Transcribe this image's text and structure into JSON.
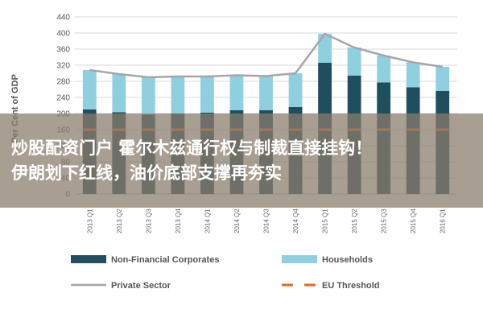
{
  "chart_data": {
    "type": "bar",
    "stacked": true,
    "ylabel": "Per Cent of GDP",
    "ylim": [
      0,
      440
    ],
    "yticks": [
      0,
      40,
      80,
      120,
      160,
      200,
      240,
      280,
      320,
      360,
      400,
      440
    ],
    "grid": true,
    "legend_position": "bottom",
    "categories": [
      "2013 Q1",
      "2013 Q2",
      "2013 Q3",
      "2013 Q4",
      "2014 Q1",
      "2014 Q2",
      "2014 Q3",
      "2014 Q4",
      "2015 Q1",
      "2015 Q2",
      "2015 Q3",
      "2015 Q4",
      "2016 Q1"
    ],
    "series": [
      {
        "name": "Non-Financial Corporates",
        "type": "bar",
        "color": "#1f4e5f",
        "values": [
          210,
          203,
          197,
          200,
          202,
          208,
          208,
          216,
          326,
          294,
          277,
          265,
          256
        ]
      },
      {
        "name": "Households",
        "type": "bar",
        "color": "#8fd0e0",
        "values": [
          98,
          95,
          93,
          92,
          90,
          87,
          85,
          84,
          72,
          70,
          67,
          62,
          60
        ]
      },
      {
        "name": "Private Sector",
        "type": "line",
        "color": "#a6a6a6",
        "values": [
          308,
          298,
          290,
          292,
          292,
          295,
          293,
          300,
          398,
          364,
          344,
          327,
          316
        ]
      },
      {
        "name": "EU Threshold",
        "type": "line",
        "style": "dashed",
        "color": "#e06a1c",
        "values": [
          160,
          160,
          160,
          160,
          160,
          160,
          160,
          160,
          160,
          160,
          160,
          160,
          160
        ]
      }
    ]
  },
  "overlay": {
    "line1": "炒股配资门户 霍尔木兹通行权与制裁直接挂钩！",
    "line2": "伊朗划下红线，油价底部支撑再夯实"
  }
}
